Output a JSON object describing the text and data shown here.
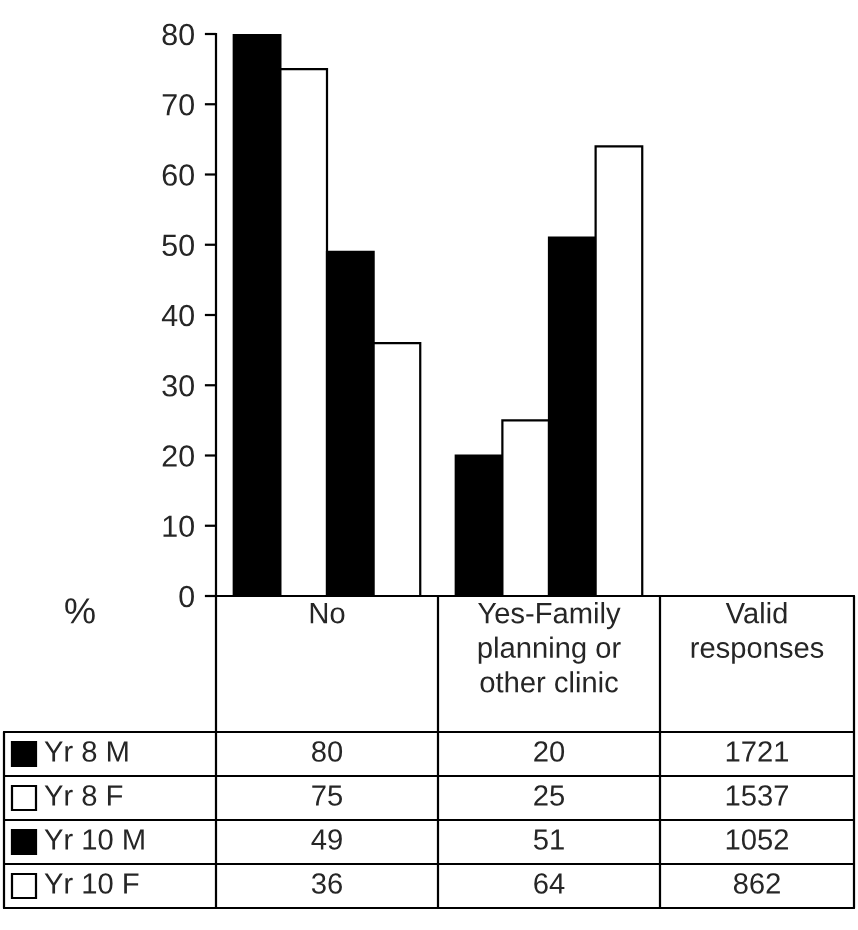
{
  "chart_data": {
    "type": "bar",
    "ylabel": "%",
    "categories": [
      "No",
      "Yes-Family\nplanning or\nother clinic"
    ],
    "series": [
      {
        "name": "Yr 8 M",
        "color": "#000000",
        "values": [
          80,
          20
        ]
      },
      {
        "name": "Yr 8 F",
        "color": "#ffffff",
        "values": [
          75,
          25
        ]
      },
      {
        "name": "Yr 10 M",
        "color": "#000000",
        "values": [
          49,
          51
        ]
      },
      {
        "name": "Yr 10 F",
        "color": "#ffffff",
        "values": [
          36,
          64
        ]
      }
    ],
    "ylim": [
      0,
      80
    ],
    "yticks": [
      0,
      10,
      20,
      30,
      40,
      50,
      60,
      70,
      80
    ],
    "grid": false,
    "legend": "bottom",
    "data_labels": true,
    "annotations": [
      "Valid\nresponses",
      "1721",
      "1537",
      "1052",
      "862"
    ]
  }
}
